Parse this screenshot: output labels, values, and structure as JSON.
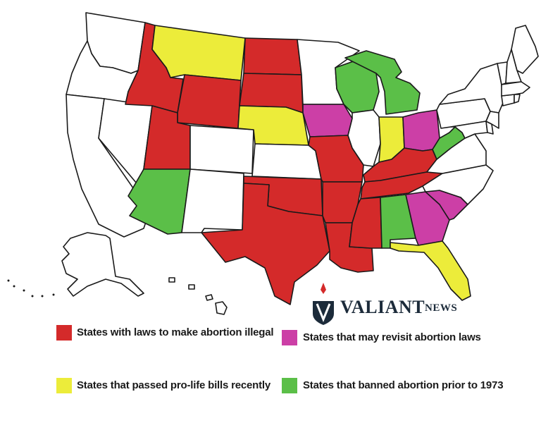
{
  "colors": {
    "illegal": "#d42a2a",
    "revisit": "#cc3fa6",
    "prolife": "#ecec3a",
    "banned_pre1973": "#5bbf48",
    "none": "#ffffff"
  },
  "logo": {
    "main": "VALIANT",
    "sub": "NEWS"
  },
  "legend": [
    {
      "key": "illegal",
      "label": "States with laws to make abortion illegal"
    },
    {
      "key": "revisit",
      "label": "States that may revisit abortion laws"
    },
    {
      "key": "prolife",
      "label": "States that passed pro-life bills recently"
    },
    {
      "key": "banned_pre1973",
      "label": "States that banned abortion prior to 1973"
    }
  ],
  "states": [
    {
      "name": "Washington",
      "category": "none"
    },
    {
      "name": "Oregon",
      "category": "none"
    },
    {
      "name": "California",
      "category": "none"
    },
    {
      "name": "Nevada",
      "category": "none"
    },
    {
      "name": "Idaho",
      "category": "illegal"
    },
    {
      "name": "Montana",
      "category": "prolife"
    },
    {
      "name": "Wyoming",
      "category": "illegal"
    },
    {
      "name": "Utah",
      "category": "illegal"
    },
    {
      "name": "Colorado",
      "category": "none"
    },
    {
      "name": "Arizona",
      "category": "banned_pre1973"
    },
    {
      "name": "New Mexico",
      "category": "none"
    },
    {
      "name": "North Dakota",
      "category": "illegal"
    },
    {
      "name": "South Dakota",
      "category": "illegal"
    },
    {
      "name": "Nebraska",
      "category": "prolife"
    },
    {
      "name": "Kansas",
      "category": "none"
    },
    {
      "name": "Oklahoma",
      "category": "illegal"
    },
    {
      "name": "Texas",
      "category": "illegal"
    },
    {
      "name": "Minnesota",
      "category": "none"
    },
    {
      "name": "Iowa",
      "category": "revisit"
    },
    {
      "name": "Missouri",
      "category": "illegal"
    },
    {
      "name": "Arkansas",
      "category": "illegal"
    },
    {
      "name": "Louisiana",
      "category": "illegal"
    },
    {
      "name": "Wisconsin",
      "category": "banned_pre1973"
    },
    {
      "name": "Illinois",
      "category": "none"
    },
    {
      "name": "Michigan",
      "category": "banned_pre1973"
    },
    {
      "name": "Indiana",
      "category": "prolife"
    },
    {
      "name": "Ohio",
      "category": "revisit"
    },
    {
      "name": "Kentucky",
      "category": "illegal"
    },
    {
      "name": "Tennessee",
      "category": "illegal"
    },
    {
      "name": "Mississippi",
      "category": "illegal"
    },
    {
      "name": "Alabama",
      "category": "banned_pre1973"
    },
    {
      "name": "Georgia",
      "category": "revisit"
    },
    {
      "name": "Florida",
      "category": "prolife"
    },
    {
      "name": "South Carolina",
      "category": "revisit"
    },
    {
      "name": "North Carolina",
      "category": "none"
    },
    {
      "name": "Virginia",
      "category": "none"
    },
    {
      "name": "West Virginia",
      "category": "banned_pre1973"
    },
    {
      "name": "Pennsylvania",
      "category": "none"
    },
    {
      "name": "New York",
      "category": "none"
    },
    {
      "name": "Maryland",
      "category": "none"
    },
    {
      "name": "New Jersey",
      "category": "none"
    },
    {
      "name": "Delaware",
      "category": "none"
    },
    {
      "name": "Connecticut",
      "category": "none"
    },
    {
      "name": "Rhode Island",
      "category": "none"
    },
    {
      "name": "Massachusetts",
      "category": "none"
    },
    {
      "name": "Vermont",
      "category": "none"
    },
    {
      "name": "New Hampshire",
      "category": "none"
    },
    {
      "name": "Maine",
      "category": "none"
    },
    {
      "name": "Alaska",
      "category": "none"
    },
    {
      "name": "Hawaii",
      "category": "none"
    }
  ]
}
